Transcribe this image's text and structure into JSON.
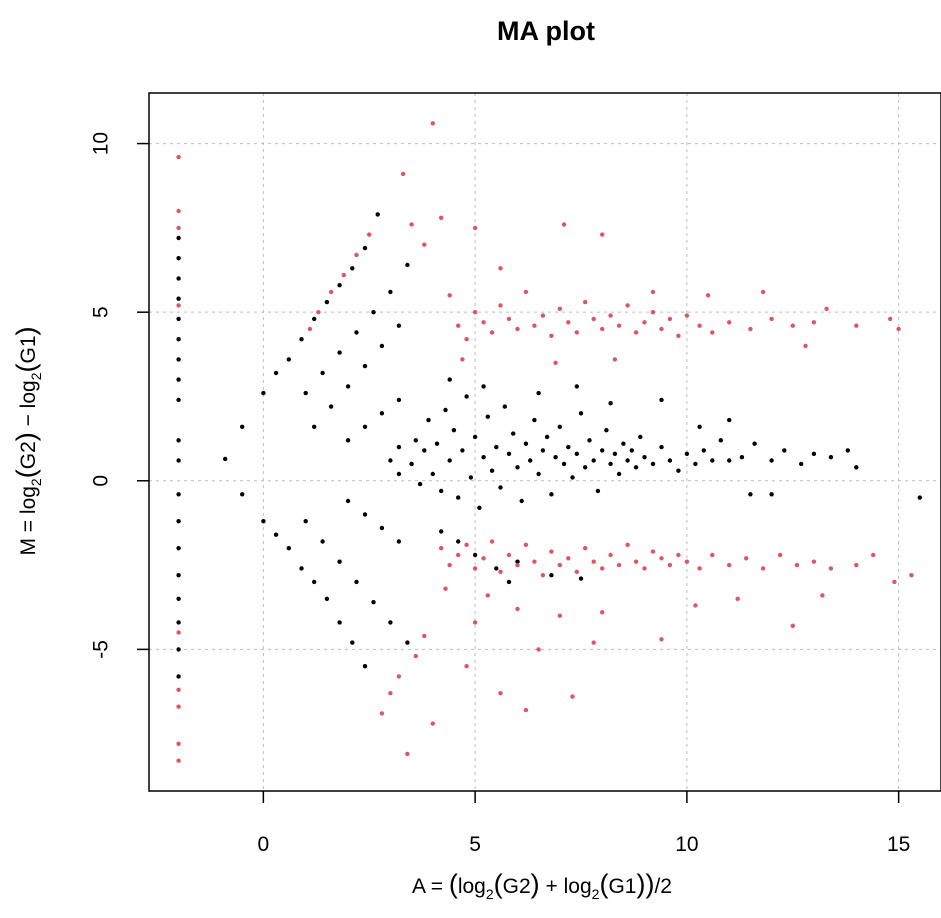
{
  "chart_data": {
    "type": "scatter",
    "title": "MA plot",
    "xlabel": "A = (log2(G2) + log2(G1))/2",
    "ylabel": "M = log2(G2) − log2(G1)",
    "xlim": [
      -2.7,
      16.0
    ],
    "ylim": [
      -9.2,
      11.5
    ],
    "xticks": [
      0,
      5,
      10,
      15
    ],
    "yticks": [
      -5,
      0,
      5,
      10
    ],
    "xtick_labels": [
      "0",
      "5",
      "10",
      "15"
    ],
    "ytick_labels": [
      "-5",
      "0",
      "5",
      "10"
    ],
    "grid": true,
    "series": [
      {
        "color": "#000000",
        "note_visible": "black points",
        "points": [
          [
            -2.0,
            7.2
          ],
          [
            -2.0,
            6.6
          ],
          [
            -2.0,
            6.0
          ],
          [
            -2.0,
            5.4
          ],
          [
            -2.0,
            4.8
          ],
          [
            -2.0,
            4.2
          ],
          [
            -2.0,
            3.6
          ],
          [
            -2.0,
            3.0
          ],
          [
            -2.0,
            2.4
          ],
          [
            -2.0,
            1.2
          ],
          [
            -2.0,
            0.6
          ],
          [
            -2.0,
            -0.4
          ],
          [
            -2.0,
            -1.2
          ],
          [
            -2.0,
            -2.0
          ],
          [
            -2.0,
            -2.8
          ],
          [
            -2.0,
            -3.5
          ],
          [
            -2.0,
            -4.2
          ],
          [
            -2.0,
            -5.0
          ],
          [
            -2.0,
            -5.8
          ],
          [
            -0.9,
            0.65
          ],
          [
            -0.5,
            1.6
          ],
          [
            -0.5,
            -0.4
          ],
          [
            0.0,
            2.6
          ],
          [
            0.0,
            -1.2
          ],
          [
            0.3,
            3.2
          ],
          [
            0.3,
            -1.6
          ],
          [
            0.6,
            3.6
          ],
          [
            0.6,
            -2.0
          ],
          [
            0.9,
            4.2
          ],
          [
            0.9,
            -2.6
          ],
          [
            1.2,
            4.8
          ],
          [
            1.2,
            -3.0
          ],
          [
            1.5,
            5.3
          ],
          [
            1.5,
            -3.5
          ],
          [
            1.8,
            5.8
          ],
          [
            1.8,
            -4.2
          ],
          [
            2.1,
            6.3
          ],
          [
            2.1,
            -4.8
          ],
          [
            2.4,
            6.9
          ],
          [
            2.4,
            -5.5
          ],
          [
            2.7,
            7.9
          ],
          [
            1.0,
            2.6
          ],
          [
            1.4,
            3.2
          ],
          [
            1.8,
            3.8
          ],
          [
            2.2,
            4.4
          ],
          [
            2.6,
            5.0
          ],
          [
            3.0,
            5.6
          ],
          [
            3.4,
            6.4
          ],
          [
            1.2,
            1.6
          ],
          [
            1.6,
            2.2
          ],
          [
            2.0,
            2.8
          ],
          [
            2.4,
            3.4
          ],
          [
            2.8,
            4.0
          ],
          [
            3.2,
            4.6
          ],
          [
            1.0,
            -1.2
          ],
          [
            1.4,
            -1.8
          ],
          [
            1.8,
            -2.4
          ],
          [
            2.2,
            -3.0
          ],
          [
            2.6,
            -3.6
          ],
          [
            3.0,
            -4.2
          ],
          [
            3.4,
            -4.8
          ],
          [
            2.0,
            1.2
          ],
          [
            2.4,
            1.6
          ],
          [
            2.8,
            2.0
          ],
          [
            3.2,
            2.4
          ],
          [
            2.0,
            -0.6
          ],
          [
            2.4,
            -1.0
          ],
          [
            2.8,
            -1.4
          ],
          [
            3.2,
            -1.8
          ],
          [
            3.0,
            0.6
          ],
          [
            3.2,
            1.0
          ],
          [
            3.2,
            0.2
          ],
          [
            3.5,
            0.5
          ],
          [
            3.6,
            1.2
          ],
          [
            3.7,
            -0.1
          ],
          [
            3.8,
            0.9
          ],
          [
            3.9,
            1.8
          ],
          [
            4.0,
            0.2
          ],
          [
            4.1,
            1.1
          ],
          [
            4.2,
            -0.3
          ],
          [
            4.3,
            2.1
          ],
          [
            4.4,
            0.6
          ],
          [
            4.5,
            1.5
          ],
          [
            4.6,
            -0.5
          ],
          [
            4.7,
            0.9
          ],
          [
            4.8,
            2.5
          ],
          [
            4.9,
            0.1
          ],
          [
            5.0,
            1.3
          ],
          [
            5.1,
            -0.8
          ],
          [
            5.2,
            0.7
          ],
          [
            5.3,
            1.9
          ],
          [
            5.4,
            0.3
          ],
          [
            5.5,
            1.0
          ],
          [
            5.6,
            -0.2
          ],
          [
            5.7,
            2.2
          ],
          [
            5.8,
            0.8
          ],
          [
            5.9,
            1.4
          ],
          [
            6.0,
            0.4
          ],
          [
            6.1,
            -0.6
          ],
          [
            6.2,
            1.1
          ],
          [
            6.3,
            0.6
          ],
          [
            6.4,
            1.8
          ],
          [
            6.5,
            0.2
          ],
          [
            6.6,
            0.9
          ],
          [
            6.7,
            1.3
          ],
          [
            6.8,
            -0.4
          ],
          [
            6.9,
            0.7
          ],
          [
            7.0,
            1.6
          ],
          [
            7.1,
            0.5
          ],
          [
            7.2,
            1.0
          ],
          [
            7.3,
            0.1
          ],
          [
            7.4,
            0.8
          ],
          [
            7.5,
            2.0
          ],
          [
            7.6,
            0.4
          ],
          [
            7.7,
            1.2
          ],
          [
            7.8,
            0.6
          ],
          [
            7.9,
            -0.3
          ],
          [
            8.0,
            0.9
          ],
          [
            8.1,
            1.5
          ],
          [
            8.2,
            0.5
          ],
          [
            8.3,
            0.8
          ],
          [
            8.4,
            0.2
          ],
          [
            8.5,
            1.1
          ],
          [
            8.6,
            0.6
          ],
          [
            8.7,
            0.9
          ],
          [
            8.8,
            0.4
          ],
          [
            8.9,
            1.3
          ],
          [
            9.0,
            0.7
          ],
          [
            9.2,
            0.5
          ],
          [
            9.4,
            1.0
          ],
          [
            9.6,
            0.6
          ],
          [
            9.8,
            0.3
          ],
          [
            10.0,
            0.8
          ],
          [
            10.2,
            0.5
          ],
          [
            10.4,
            0.9
          ],
          [
            10.6,
            0.6
          ],
          [
            10.8,
            1.2
          ],
          [
            11.0,
            0.6
          ],
          [
            11.3,
            0.7
          ],
          [
            11.6,
            1.1
          ],
          [
            12.0,
            0.6
          ],
          [
            12.3,
            0.9
          ],
          [
            12.7,
            0.5
          ],
          [
            13.0,
            0.8
          ],
          [
            13.4,
            0.7
          ],
          [
            13.8,
            0.9
          ],
          [
            14.0,
            0.4
          ],
          [
            15.5,
            -0.5
          ],
          [
            12.0,
            -0.4
          ],
          [
            11.5,
            -0.4
          ],
          [
            4.2,
            -1.5
          ],
          [
            4.6,
            -1.8
          ],
          [
            5.0,
            -2.2
          ],
          [
            5.5,
            -2.6
          ],
          [
            6.0,
            -2.4
          ],
          [
            4.4,
            3.0
          ],
          [
            5.2,
            2.8
          ],
          [
            6.5,
            2.6
          ],
          [
            7.4,
            2.8
          ],
          [
            8.2,
            2.3
          ],
          [
            9.4,
            2.4
          ],
          [
            10.3,
            1.6
          ],
          [
            11.0,
            1.8
          ],
          [
            6.8,
            -2.8
          ],
          [
            7.5,
            -2.9
          ],
          [
            5.8,
            -3.0
          ]
        ]
      },
      {
        "color": "#df536b",
        "note_visible": "red points",
        "points": [
          [
            -2.0,
            9.6
          ],
          [
            -2.0,
            8.0
          ],
          [
            -2.0,
            7.5
          ],
          [
            -2.0,
            -6.2
          ],
          [
            -2.0,
            -6.7
          ],
          [
            -2.0,
            -7.8
          ],
          [
            -2.0,
            -8.3
          ],
          [
            -2.0,
            5.2
          ],
          [
            -2.0,
            -4.5
          ],
          [
            3.3,
            9.1
          ],
          [
            4.0,
            10.6
          ],
          [
            3.4,
            -8.1
          ],
          [
            4.0,
            -7.2
          ],
          [
            2.8,
            -6.9
          ],
          [
            3.0,
            -6.3
          ],
          [
            3.2,
            -5.8
          ],
          [
            3.6,
            -5.2
          ],
          [
            3.8,
            -4.6
          ],
          [
            3.5,
            7.6
          ],
          [
            3.8,
            7.0
          ],
          [
            4.2,
            7.8
          ],
          [
            1.1,
            4.5
          ],
          [
            1.3,
            5.0
          ],
          [
            1.6,
            5.6
          ],
          [
            1.9,
            6.1
          ],
          [
            2.2,
            6.7
          ],
          [
            2.5,
            7.3
          ],
          [
            4.4,
            5.5
          ],
          [
            4.6,
            4.6
          ],
          [
            4.8,
            4.2
          ],
          [
            5.0,
            5.0
          ],
          [
            5.2,
            4.7
          ],
          [
            5.4,
            4.4
          ],
          [
            5.6,
            5.2
          ],
          [
            5.8,
            4.8
          ],
          [
            6.0,
            4.5
          ],
          [
            6.2,
            5.6
          ],
          [
            6.4,
            4.6
          ],
          [
            6.6,
            4.9
          ],
          [
            6.8,
            4.3
          ],
          [
            7.0,
            5.1
          ],
          [
            7.2,
            4.7
          ],
          [
            7.4,
            4.4
          ],
          [
            7.6,
            5.3
          ],
          [
            7.8,
            4.8
          ],
          [
            8.0,
            4.5
          ],
          [
            8.2,
            4.9
          ],
          [
            8.4,
            4.6
          ],
          [
            8.6,
            5.2
          ],
          [
            8.8,
            4.4
          ],
          [
            9.0,
            4.7
          ],
          [
            9.2,
            5.0
          ],
          [
            9.4,
            4.5
          ],
          [
            9.6,
            4.8
          ],
          [
            9.8,
            4.3
          ],
          [
            10.0,
            4.9
          ],
          [
            10.3,
            4.6
          ],
          [
            10.6,
            4.4
          ],
          [
            11.0,
            4.7
          ],
          [
            11.5,
            4.5
          ],
          [
            12.0,
            4.8
          ],
          [
            12.5,
            4.6
          ],
          [
            13.0,
            4.7
          ],
          [
            13.3,
            5.1
          ],
          [
            14.0,
            4.6
          ],
          [
            14.8,
            4.8
          ],
          [
            15.0,
            4.5
          ],
          [
            12.8,
            4.0
          ],
          [
            5.0,
            7.5
          ],
          [
            5.6,
            6.3
          ],
          [
            7.1,
            7.6
          ],
          [
            8.0,
            7.3
          ],
          [
            9.2,
            5.6
          ],
          [
            10.5,
            5.5
          ],
          [
            11.8,
            5.6
          ],
          [
            4.7,
            3.6
          ],
          [
            6.9,
            3.5
          ],
          [
            8.3,
            3.6
          ],
          [
            4.2,
            -2.0
          ],
          [
            4.4,
            -2.5
          ],
          [
            4.6,
            -2.2
          ],
          [
            4.8,
            -1.9
          ],
          [
            5.0,
            -2.6
          ],
          [
            5.2,
            -2.3
          ],
          [
            5.4,
            -1.8
          ],
          [
            5.6,
            -2.7
          ],
          [
            5.8,
            -2.2
          ],
          [
            6.0,
            -2.5
          ],
          [
            6.2,
            -1.9
          ],
          [
            6.4,
            -2.4
          ],
          [
            6.6,
            -2.8
          ],
          [
            6.8,
            -2.1
          ],
          [
            7.0,
            -2.5
          ],
          [
            7.2,
            -2.3
          ],
          [
            7.4,
            -2.7
          ],
          [
            7.6,
            -2.0
          ],
          [
            7.8,
            -2.4
          ],
          [
            8.0,
            -2.6
          ],
          [
            8.2,
            -2.2
          ],
          [
            8.4,
            -2.5
          ],
          [
            8.6,
            -1.9
          ],
          [
            8.8,
            -2.4
          ],
          [
            9.0,
            -2.6
          ],
          [
            9.2,
            -2.1
          ],
          [
            9.4,
            -2.3
          ],
          [
            9.6,
            -2.5
          ],
          [
            9.8,
            -2.2
          ],
          [
            10.0,
            -2.4
          ],
          [
            10.3,
            -2.6
          ],
          [
            10.6,
            -2.2
          ],
          [
            11.0,
            -2.5
          ],
          [
            11.4,
            -2.3
          ],
          [
            11.8,
            -2.6
          ],
          [
            12.2,
            -2.2
          ],
          [
            12.6,
            -2.5
          ],
          [
            13.0,
            -2.4
          ],
          [
            13.4,
            -2.6
          ],
          [
            14.0,
            -2.5
          ],
          [
            14.4,
            -2.2
          ],
          [
            14.9,
            -3.0
          ],
          [
            15.3,
            -2.8
          ],
          [
            12.5,
            -4.3
          ],
          [
            13.2,
            -3.4
          ],
          [
            6.0,
            -3.8
          ],
          [
            7.0,
            -4.0
          ],
          [
            8.0,
            -3.9
          ],
          [
            5.0,
            -4.2
          ],
          [
            6.5,
            -5.0
          ],
          [
            7.8,
            -4.8
          ],
          [
            4.8,
            -5.5
          ],
          [
            5.6,
            -6.3
          ],
          [
            6.2,
            -6.8
          ],
          [
            7.3,
            -6.4
          ],
          [
            9.4,
            -4.7
          ],
          [
            10.2,
            -3.7
          ],
          [
            11.2,
            -3.5
          ],
          [
            4.3,
            -3.2
          ],
          [
            5.3,
            -3.4
          ]
        ]
      }
    ]
  }
}
